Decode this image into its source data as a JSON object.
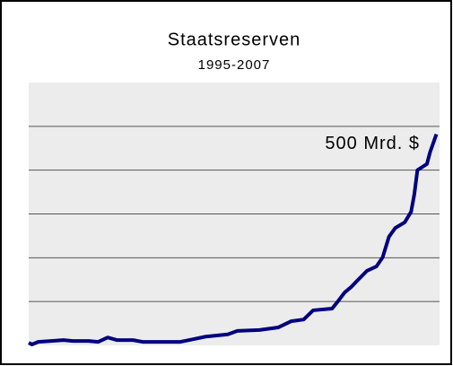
{
  "chart_data": {
    "type": "line",
    "title": "Staatsreserven",
    "subtitle": "1995-2007",
    "annotation": "500 Mrd. $",
    "x": [
      1995.0,
      1995.1,
      1995.3,
      1995.7,
      1996.1,
      1996.4,
      1996.9,
      1997.2,
      1997.5,
      1997.8,
      1998.3,
      1998.6,
      1999.8,
      2000.2,
      2000.6,
      2001.3,
      2001.6,
      2002.3,
      2002.9,
      2003.3,
      2003.7,
      2004.0,
      2004.6,
      2004.8,
      2005.0,
      2005.2,
      2005.4,
      2005.7,
      2006.0,
      2006.2,
      2006.4,
      2006.6,
      2006.9,
      2007.1,
      2007.2,
      2007.3,
      2007.6,
      2007.7,
      2007.9
    ],
    "series": [
      {
        "color": "#000080",
        "values": [
          6,
          2,
          8,
          10,
          12,
          10,
          10,
          8,
          18,
          12,
          12,
          8,
          8,
          14,
          20,
          25,
          33,
          35,
          41,
          55,
          59,
          80,
          84,
          102,
          121,
          133,
          148,
          170,
          180,
          201,
          248,
          268,
          281,
          305,
          344,
          400,
          414,
          441,
          482
        ]
      }
    ],
    "xlim": [
      1995,
      2008
    ],
    "ylim": [
      0,
      600
    ],
    "yticks": [
      100,
      200,
      300,
      400,
      500
    ],
    "grid": true
  }
}
